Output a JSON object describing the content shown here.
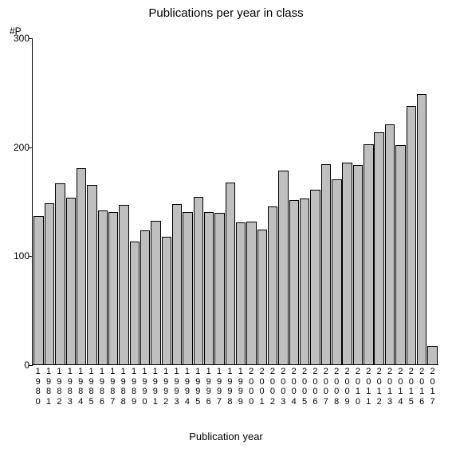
{
  "chart": {
    "type": "bar",
    "title": "Publications per year in class",
    "title_fontsize": 15,
    "yaxis_label": "#P",
    "xaxis_label": "Publication year",
    "xaxis_label_fontsize": 13,
    "label_fontsize": 12,
    "ylim": [
      0,
      300
    ],
    "yticks": [
      0,
      100,
      200,
      300
    ],
    "background_color": "#ffffff",
    "bar_fill": "#bfbfbf",
    "bar_border": "#000000",
    "axis_color": "#000000",
    "text_color": "#000000",
    "bar_width_ratio": 0.93,
    "categories": [
      "1980",
      "1981",
      "1982",
      "1983",
      "1984",
      "1985",
      "1986",
      "1987",
      "1988",
      "1989",
      "1990",
      "1991",
      "1992",
      "1993",
      "1994",
      "1995",
      "1996",
      "1997",
      "1998",
      "1999",
      "2000",
      "2001",
      "2002",
      "2003",
      "2004",
      "2005",
      "2006",
      "2007",
      "2008",
      "2009",
      "2010",
      "2011",
      "2012",
      "2013",
      "2014",
      "2015",
      "2016",
      "2017"
    ],
    "values": [
      136,
      148,
      166,
      153,
      180,
      165,
      141,
      140,
      146,
      113,
      123,
      132,
      117,
      147,
      140,
      154,
      140,
      139,
      167,
      130,
      131,
      124,
      145,
      178,
      151,
      152,
      160,
      184,
      170,
      185,
      183,
      202,
      213,
      220,
      201,
      237,
      248,
      17
    ]
  }
}
